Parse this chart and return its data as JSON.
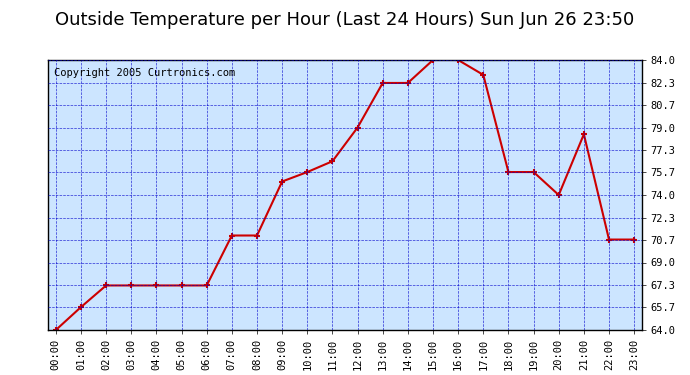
{
  "title": "Outside Temperature per Hour (Last 24 Hours) Sun Jun 26 23:50",
  "copyright": "Copyright 2005 Curtronics.com",
  "hours": [
    "00:00",
    "01:00",
    "02:00",
    "03:00",
    "04:00",
    "05:00",
    "06:00",
    "07:00",
    "08:00",
    "09:00",
    "10:00",
    "11:00",
    "12:00",
    "13:00",
    "14:00",
    "15:00",
    "16:00",
    "17:00",
    "18:00",
    "19:00",
    "20:00",
    "21:00",
    "22:00",
    "23:00"
  ],
  "temps": [
    64.0,
    65.7,
    67.3,
    67.3,
    67.3,
    67.3,
    67.3,
    71.0,
    71.0,
    75.0,
    75.7,
    76.5,
    79.0,
    82.3,
    82.3,
    84.0,
    84.0,
    82.9,
    75.7,
    75.7,
    74.0,
    78.5,
    70.7,
    70.7
  ],
  "line_color": "#cc0000",
  "marker_color": "#cc0000",
  "bg_color": "#cce5ff",
  "plot_bg_color": "#cce5ff",
  "outer_bg_color": "#ffffff",
  "grid_color": "#0000cc",
  "title_color": "#000000",
  "ylim_min": 64.0,
  "ylim_max": 84.0,
  "yticks": [
    64.0,
    65.7,
    67.3,
    69.0,
    70.7,
    72.3,
    74.0,
    75.7,
    77.3,
    79.0,
    80.7,
    82.3,
    84.0
  ],
  "title_fontsize": 13,
  "copyright_fontsize": 7.5,
  "tick_fontsize": 7.5
}
